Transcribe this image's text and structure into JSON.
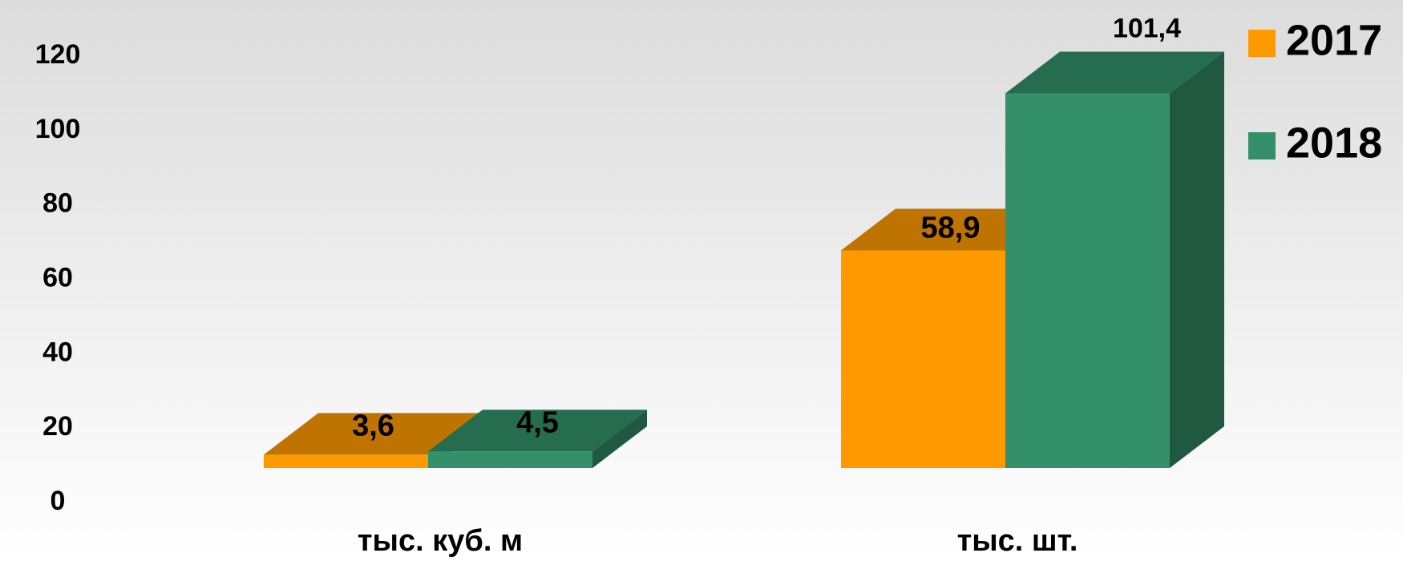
{
  "chart_data": {
    "type": "bar3d",
    "categories": [
      "тыс. куб. м",
      "тыс. шт."
    ],
    "series": [
      {
        "name": "2017",
        "color": "#ff9900",
        "values": [
          3.6,
          58.9
        ],
        "value_labels": [
          "3,6",
          "58,9"
        ]
      },
      {
        "name": "2018",
        "color": "#339068",
        "values": [
          4.5,
          101.4
        ],
        "value_labels": [
          "4,5",
          "101,4"
        ]
      }
    ],
    "ylim": [
      0,
      120
    ],
    "yticks": [
      0,
      20,
      40,
      60,
      80,
      100,
      120
    ],
    "grid": false,
    "legend": "top-right"
  }
}
